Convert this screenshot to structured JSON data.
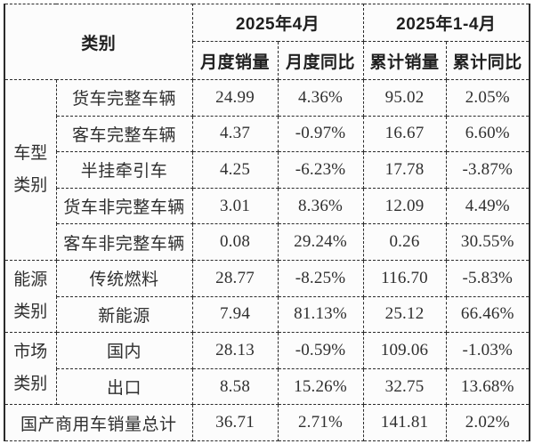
{
  "chart_data": {
    "type": "table",
    "header": {
      "category": "类别",
      "groups": [
        {
          "label": "2025年4月",
          "sub": [
            "月度销量",
            "月度同比"
          ]
        },
        {
          "label": "2025年1-4月",
          "sub": [
            "累计销量",
            "累计同比"
          ]
        }
      ]
    },
    "sections": [
      {
        "group": "车型类别",
        "rows": [
          {
            "name": "货车完整车辆",
            "values": [
              "24.99",
              "4.36%",
              "95.02",
              "2.05%"
            ]
          },
          {
            "name": "客车完整车辆",
            "values": [
              "4.37",
              "-0.97%",
              "16.67",
              "6.60%"
            ]
          },
          {
            "name": "半挂牵引车",
            "values": [
              "4.25",
              "-6.23%",
              "17.78",
              "-3.87%"
            ]
          },
          {
            "name": "货车非完整车辆",
            "values": [
              "3.01",
              "8.36%",
              "12.09",
              "4.49%"
            ]
          },
          {
            "name": "客车非完整车辆",
            "values": [
              "0.08",
              "29.24%",
              "0.26",
              "30.55%"
            ]
          }
        ]
      },
      {
        "group": "能源类别",
        "rows": [
          {
            "name": "传统燃料",
            "values": [
              "28.77",
              "-8.25%",
              "116.70",
              "-5.83%"
            ]
          },
          {
            "name": "新能源",
            "values": [
              "7.94",
              "81.13%",
              "25.12",
              "66.46%"
            ]
          }
        ]
      },
      {
        "group": "市场类别",
        "rows": [
          {
            "name": "国内",
            "values": [
              "28.13",
              "-0.59%",
              "109.06",
              "-1.03%"
            ]
          },
          {
            "name": "出口",
            "values": [
              "8.58",
              "15.26%",
              "32.75",
              "13.68%"
            ]
          }
        ]
      }
    ],
    "total": {
      "name": "国产商用车销量总计",
      "values": [
        "36.71",
        "2.71%",
        "141.81",
        "2.02%"
      ]
    },
    "colors": {
      "border": "#2b2b2b",
      "header_text": "#1f1f1f",
      "body_text": "#2f2f2f",
      "cell_bg": "#fcfcfc"
    }
  }
}
